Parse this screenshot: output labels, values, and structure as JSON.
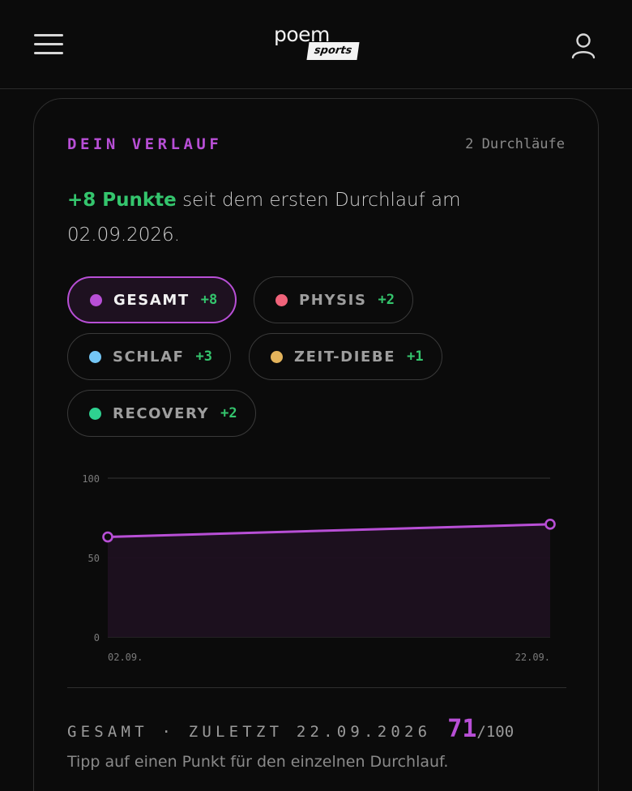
{
  "header": {
    "logo_main": "poem",
    "logo_sub": "sports",
    "menu_icon": "hamburger-menu-icon",
    "user_icon": "user-profile-icon"
  },
  "history": {
    "title": "DEIN VERLAUF",
    "runs_label": "2 Durchläufe",
    "summary_gain": "+8 Punkte",
    "summary_rest": " seit dem ersten Durchlauf am 02.09.2026."
  },
  "filters": [
    {
      "label": "GESAMT",
      "delta": "+8",
      "color": "#b84fd6",
      "active": true
    },
    {
      "label": "PHYSIS",
      "delta": "+2",
      "color": "#f0637a",
      "active": false
    },
    {
      "label": "SCHLAF",
      "delta": "+3",
      "color": "#74c6f5",
      "active": false
    },
    {
      "label": "ZEIT-DIEBE",
      "delta": "+1",
      "color": "#e3b35b",
      "active": false
    },
    {
      "label": "RECOVERY",
      "delta": "+2",
      "color": "#2ed190",
      "active": false
    }
  ],
  "chart_data": {
    "type": "area",
    "x": [
      "02.09.",
      "22.09."
    ],
    "series": [
      {
        "values": [
          63,
          71
        ]
      }
    ],
    "y_ticks": [
      "100",
      "50",
      "0"
    ],
    "ylim": [
      0,
      100
    ],
    "line_color": "#b84fd6",
    "fill_color": "#1e1120",
    "grid": true
  },
  "footer": {
    "label": "GESAMT · ZULETZT 22.09.2026",
    "score": "71",
    "max": "/100",
    "hint": "Tipp auf einen Punkt für den einzelnen Durchlauf."
  }
}
